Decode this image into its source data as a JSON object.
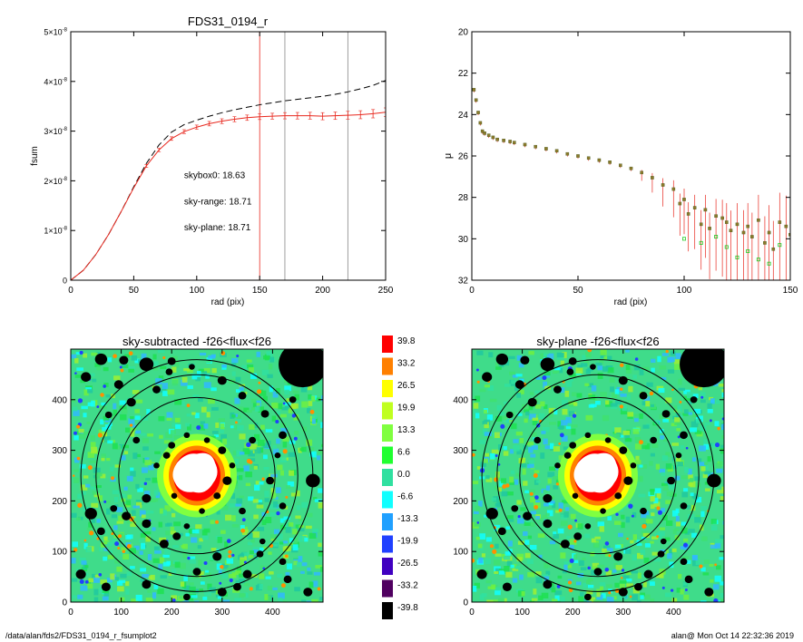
{
  "footer": {
    "path": "/data/alan/fds2/FDS31_0194_r_fsumplot2",
    "user_time": "alan@  Mon Oct 14 22:32:36 2019"
  },
  "colors": {
    "model": "#000000",
    "sky_range": "#e8281e",
    "sky_plane": "#22cc22",
    "marker_fill": "#8c7a2a"
  },
  "chart_data": [
    {
      "type": "line",
      "title": "FDS31_0194_r",
      "xlabel": "rad (pix)",
      "ylabel": "fsum",
      "xlim": [
        0,
        250
      ],
      "ylim": [
        0,
        5e-08
      ],
      "x_ticks": [
        0,
        50,
        100,
        150,
        200,
        250
      ],
      "y_ticks": [
        0,
        1e-08,
        2e-08,
        3e-08,
        4e-08,
        5e-08
      ],
      "y_tick_labels": [
        {
          "mant": "0",
          "exp": ""
        },
        {
          "mant": "1×10",
          "exp": "-8"
        },
        {
          "mant": "2×10",
          "exp": "-8"
        },
        {
          "mant": "3×10",
          "exp": "-8"
        },
        {
          "mant": "4×10",
          "exp": "-8"
        },
        {
          "mant": "5×10",
          "exp": "-8"
        }
      ],
      "vlines": [
        {
          "x": 150,
          "color": "#e8281e"
        },
        {
          "x": 170,
          "color": "#888888"
        },
        {
          "x": 220,
          "color": "#888888"
        }
      ],
      "annotations": [
        {
          "text": "skybox0: 18.63",
          "color": "#000000",
          "x": 90,
          "y": 2.05e-08
        },
        {
          "text": "sky-range: 18.71",
          "color": "#e8281e",
          "x": 90,
          "y": 1.52e-08
        },
        {
          "text": "sky-plane: 18.71",
          "color": "#22cc22",
          "x": 90,
          "y": 1e-08
        }
      ],
      "series": [
        {
          "style": "dashed",
          "color": "#000000",
          "x": [
            0,
            10,
            20,
            30,
            40,
            50,
            60,
            70,
            80,
            90,
            100,
            110,
            120,
            130,
            140,
            150,
            160,
            170,
            180,
            190,
            200,
            210,
            220,
            230,
            240,
            250
          ],
          "y": [
            0,
            2e-09,
            5.2e-09,
            9.2e-09,
            1.38e-08,
            1.88e-08,
            2.35e-08,
            2.72e-08,
            2.98e-08,
            3.13e-08,
            3.22e-08,
            3.3e-08,
            3.37e-08,
            3.43e-08,
            3.48e-08,
            3.53e-08,
            3.57e-08,
            3.61e-08,
            3.64e-08,
            3.67e-08,
            3.7e-08,
            3.74e-08,
            3.79e-08,
            3.85e-08,
            3.92e-08,
            4.02e-08
          ]
        },
        {
          "style": "solid",
          "color": "#e8281e",
          "errorbars": true,
          "x": [
            0,
            10,
            20,
            30,
            40,
            50,
            60,
            70,
            80,
            90,
            100,
            110,
            120,
            130,
            140,
            150,
            160,
            170,
            180,
            190,
            200,
            210,
            220,
            230,
            240,
            250
          ],
          "y": [
            0,
            2e-09,
            5.2e-09,
            9.2e-09,
            1.38e-08,
            1.86e-08,
            2.3e-08,
            2.62e-08,
            2.85e-08,
            2.99e-08,
            3.08e-08,
            3.15e-08,
            3.2e-08,
            3.24e-08,
            3.27e-08,
            3.29e-08,
            3.3e-08,
            3.31e-08,
            3.31e-08,
            3.31e-08,
            3.3e-08,
            3.31e-08,
            3.32e-08,
            3.33e-08,
            3.35e-08,
            3.38e-08
          ]
        }
      ]
    },
    {
      "type": "scatter",
      "title": "",
      "xlabel": "rad (pix)",
      "ylabel": "μ",
      "xlim": [
        0,
        150
      ],
      "ylim": [
        32,
        20
      ],
      "x_ticks": [
        0,
        50,
        100,
        150
      ],
      "y_ticks": [
        20,
        22,
        24,
        26,
        28,
        30,
        32
      ],
      "series": [
        {
          "marker": "square",
          "color": "#8c7a2a",
          "errorbars": true,
          "x": [
            1,
            2,
            3,
            4,
            5,
            6,
            8,
            10,
            12,
            15,
            18,
            20,
            25,
            30,
            35,
            40,
            45,
            50,
            55,
            60,
            65,
            70,
            75,
            80,
            85,
            90,
            95,
            98,
            100,
            102,
            105,
            108,
            110,
            112,
            115,
            118,
            120,
            122,
            125,
            128,
            130,
            132,
            135,
            138,
            140,
            142,
            145,
            148,
            150
          ],
          "y": [
            22.8,
            23.3,
            23.9,
            24.4,
            24.8,
            24.9,
            25.0,
            25.1,
            25.2,
            25.25,
            25.3,
            25.35,
            25.45,
            25.55,
            25.65,
            25.75,
            25.9,
            26.0,
            26.1,
            26.2,
            26.3,
            26.45,
            26.6,
            26.8,
            27.05,
            27.4,
            27.6,
            28.3,
            28.1,
            28.8,
            28.5,
            29.3,
            28.6,
            29.5,
            28.9,
            29.0,
            29.2,
            29.6,
            29.3,
            29.7,
            29.4,
            29.9,
            29.1,
            30.2,
            29.7,
            30.5,
            29.2,
            29.4,
            29.8
          ]
        },
        {
          "marker": "open-square",
          "color": "#22cc22",
          "x": [
            100,
            108,
            115,
            120,
            125,
            130,
            135,
            140,
            145
          ],
          "y": [
            30.0,
            30.2,
            29.9,
            30.4,
            30.9,
            30.6,
            31.0,
            31.2,
            30.3
          ]
        }
      ]
    },
    {
      "type": "heatmap",
      "title": "sky-subtracted -f26<flux<f26",
      "xlim": [
        0,
        500
      ],
      "ylim": [
        0,
        500
      ],
      "x_ticks": [
        0,
        100,
        200,
        300,
        400
      ],
      "y_ticks": [
        0,
        100,
        200,
        300,
        400
      ],
      "center": [
        250,
        250
      ],
      "circle_radii": [
        155,
        200,
        230
      ]
    },
    {
      "type": "heatmap",
      "title": "sky-plane -f26<flux<f26",
      "xlim": [
        0,
        500
      ],
      "ylim": [
        0,
        500
      ],
      "x_ticks": [
        0,
        100,
        200,
        300,
        400
      ],
      "y_ticks": [
        0,
        100,
        200,
        300,
        400
      ],
      "center": [
        250,
        250
      ],
      "circle_radii": [
        155,
        200,
        230
      ]
    }
  ],
  "colorbar": {
    "labels": [
      "39.8",
      "33.2",
      "26.5",
      "19.9",
      "13.3",
      "6.6",
      "0.0",
      "-6.6",
      "-13.3",
      "-19.9",
      "-26.5",
      "-33.2",
      "-39.8"
    ],
    "colors": [
      "#ff0000",
      "#ff8000",
      "#ffff00",
      "#c0ff20",
      "#80ff40",
      "#20ff30",
      "#30e0a0",
      "#10ffff",
      "#20a0ff",
      "#2040ff",
      "#4000c0",
      "#500060",
      "#000000"
    ]
  }
}
